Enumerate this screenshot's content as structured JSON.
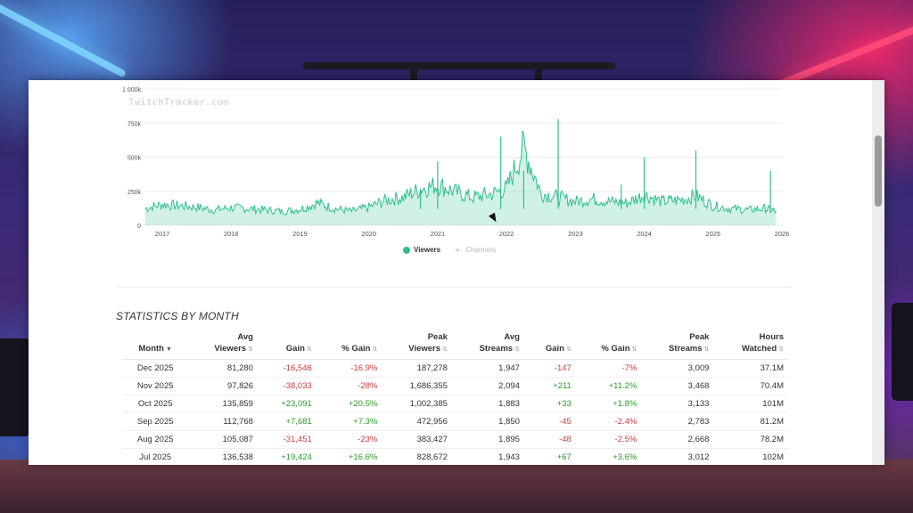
{
  "chart_data": {
    "type": "area",
    "watermark": "TwitchTracker.com",
    "y_ticks": [
      "1 000k",
      "750k",
      "500k",
      "250k",
      "0"
    ],
    "y_tick_values": [
      1000000,
      750000,
      500000,
      250000,
      0
    ],
    "ylim": [
      0,
      1000000
    ],
    "x_ticks": [
      "2017",
      "2018",
      "2019",
      "2020",
      "2021",
      "2022",
      "2023",
      "2024",
      "2025",
      "2026"
    ],
    "grid": true,
    "legend_position": "bottom-center",
    "series": [
      {
        "name": "Viewers",
        "color": "#2fbf8f",
        "x": [
          "2016-10",
          "2017-01",
          "2017-04",
          "2017-07",
          "2017-10",
          "2018-01",
          "2018-04",
          "2018-07",
          "2018-10",
          "2019-01",
          "2019-04",
          "2019-07",
          "2019-10",
          "2020-01",
          "2020-04",
          "2020-07",
          "2020-10",
          "2021-01",
          "2021-04",
          "2021-07",
          "2021-10",
          "2022-01",
          "2022-04",
          "2022-07",
          "2022-10",
          "2023-01",
          "2023-04",
          "2023-07",
          "2023-10",
          "2024-01",
          "2024-04",
          "2024-07",
          "2024-10",
          "2025-01",
          "2025-04",
          "2025-07",
          "2025-10",
          "2025-12"
        ],
        "values": [
          120000,
          150000,
          140000,
          130000,
          110000,
          125000,
          120000,
          110000,
          100000,
          115000,
          160000,
          120000,
          100000,
          130000,
          180000,
          200000,
          260000,
          290000,
          240000,
          200000,
          220000,
          260000,
          560000,
          230000,
          200000,
          170000,
          190000,
          170000,
          160000,
          220000,
          170000,
          180000,
          210000,
          140000,
          120000,
          110000,
          120000,
          100000
        ],
        "spikes": [
          {
            "x": "2020-10",
            "value": 270000
          },
          {
            "x": "2021-01",
            "value": 470000
          },
          {
            "x": "2021-12",
            "value": 650000
          },
          {
            "x": "2022-04",
            "value": 400000
          },
          {
            "x": "2022-10",
            "value": 780000
          },
          {
            "x": "2023-09",
            "value": 300000
          },
          {
            "x": "2024-01",
            "value": 500000
          },
          {
            "x": "2024-10",
            "value": 550000
          },
          {
            "x": "2025-11",
            "value": 400000
          }
        ]
      },
      {
        "name": "Channels",
        "color": "#cfcfcf",
        "values": []
      }
    ]
  },
  "legend": {
    "viewers": "Viewers",
    "channels": "Channels"
  },
  "stats": {
    "title": "STATISTICS BY MONTH",
    "headers": [
      {
        "l1": "",
        "l2": "Month",
        "sort": "▼"
      },
      {
        "l1": "Avg",
        "l2": "Viewers",
        "sort": "⇅"
      },
      {
        "l1": "",
        "l2": "Gain",
        "sort": "⇅"
      },
      {
        "l1": "",
        "l2": "% Gain",
        "sort": "⇅"
      },
      {
        "l1": "Peak",
        "l2": "Viewers",
        "sort": "⇅"
      },
      {
        "l1": "Avg",
        "l2": "Streams",
        "sort": "⇅"
      },
      {
        "l1": "",
        "l2": "Gain",
        "sort": "⇅"
      },
      {
        "l1": "",
        "l2": "% Gain",
        "sort": "⇅"
      },
      {
        "l1": "Peak",
        "l2": "Streams",
        "sort": "⇅"
      },
      {
        "l1": "Hours",
        "l2": "Watched",
        "sort": "⇅"
      }
    ],
    "rows": [
      [
        "Dec 2025",
        "81,280",
        "-16,546",
        "-16.9%",
        "187,278",
        "1,947",
        "-147",
        "-7%",
        "3,009",
        "37.1M"
      ],
      [
        "Nov 2025",
        "97,826",
        "-38,033",
        "-28%",
        "1,686,355",
        "2,094",
        "+211",
        "+11.2%",
        "3,468",
        "70.4M"
      ],
      [
        "Oct 2025",
        "135,859",
        "+23,091",
        "+20.5%",
        "1,002,385",
        "1,883",
        "+33",
        "+1.8%",
        "3,133",
        "101M"
      ],
      [
        "Sep 2025",
        "112,768",
        "+7,681",
        "+7.3%",
        "472,956",
        "1,850",
        "-45",
        "-2.4%",
        "2,783",
        "81.2M"
      ],
      [
        "Aug 2025",
        "105,087",
        "-31,451",
        "-23%",
        "383,427",
        "1,895",
        "-48",
        "-2.5%",
        "2,668",
        "78.2M"
      ],
      [
        "Jul 2025",
        "136,538",
        "+19,424",
        "+16.6%",
        "828,672",
        "1,943",
        "+67",
        "+3.6%",
        "3,012",
        "102M"
      ]
    ]
  }
}
